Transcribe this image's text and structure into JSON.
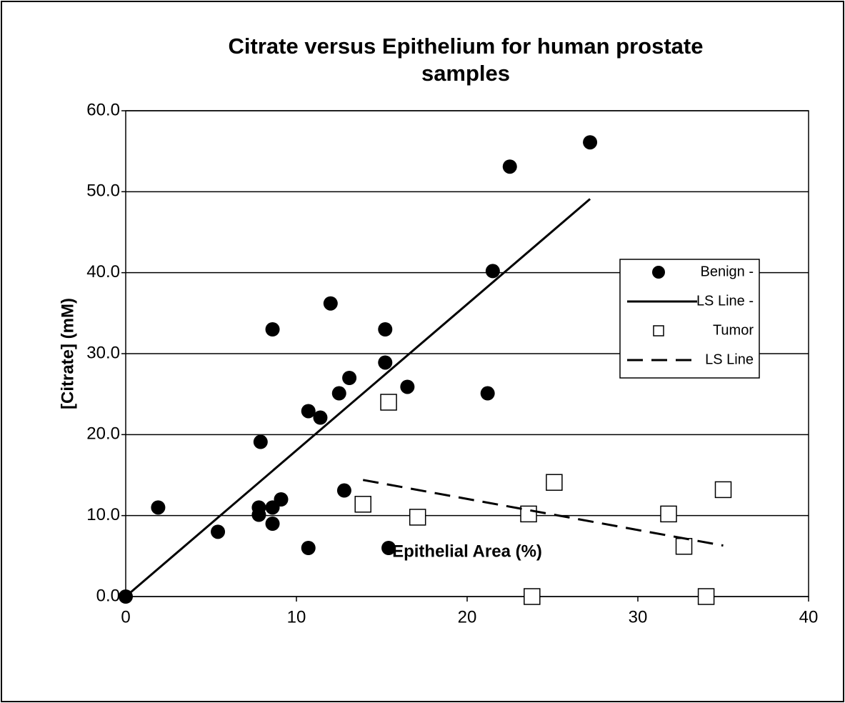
{
  "chart_data": {
    "type": "scatter",
    "title": "Citrate versus Epithelium for human prostate samples",
    "x_label": "Epithelial Area (%)",
    "y_label": "[Citrate] (mM)",
    "xlim": [
      0,
      40
    ],
    "xticks": [
      0,
      10,
      20,
      30,
      40
    ],
    "ylim": [
      0,
      60
    ],
    "yticks": [
      {
        "value": 0,
        "label": "0.0"
      },
      {
        "value": 10,
        "label": "10.0"
      },
      {
        "value": 20,
        "label": "20.0"
      },
      {
        "value": 30,
        "label": "30.0"
      },
      {
        "value": 40,
        "label": "40.0"
      },
      {
        "value": 50,
        "label": "50.0"
      },
      {
        "value": 60,
        "label": "60.0"
      }
    ],
    "grid": true,
    "legend": "right",
    "series": [
      {
        "name": "Benign -",
        "mode": "markers",
        "marker": "circle",
        "color": "#000000",
        "x": [
          0,
          1.9,
          5.4,
          7.9,
          7.8,
          7.8,
          8.6,
          8.6,
          8.6,
          9.1,
          10.7,
          10.7,
          11.4,
          12.0,
          12.5,
          12.8,
          13.1,
          15.2,
          15.2,
          15.4,
          16.5,
          21.2,
          21.5,
          22.5,
          27.2
        ],
        "values": [
          0,
          11,
          8,
          19.1,
          11,
          10.1,
          33,
          11,
          9,
          12,
          22.9,
          6,
          22.1,
          36.2,
          25.1,
          13.1,
          27,
          33,
          28.9,
          6,
          25.9,
          25.1,
          40.2,
          53.1,
          56.1
        ]
      },
      {
        "name": "LS Line -",
        "mode": "lines",
        "dash": "solid",
        "color": "#000000",
        "x": [
          0,
          27.2
        ],
        "values": [
          0,
          49.1
        ]
      },
      {
        "name": "Tumor",
        "mode": "markers",
        "marker": "square",
        "color": "#000000",
        "x": [
          13.9,
          15.4,
          17.1,
          23.6,
          23.8,
          25.1,
          31.8,
          32.7,
          34.0,
          35.0
        ],
        "values": [
          11.4,
          24,
          9.8,
          10.2,
          0,
          14.1,
          10.2,
          6.2,
          0,
          13.2
        ]
      },
      {
        "name": "LS Line",
        "mode": "lines",
        "dash": "dashed",
        "color": "#000000",
        "x": [
          13.9,
          35.0
        ],
        "values": [
          14.4,
          6.3
        ]
      }
    ]
  }
}
